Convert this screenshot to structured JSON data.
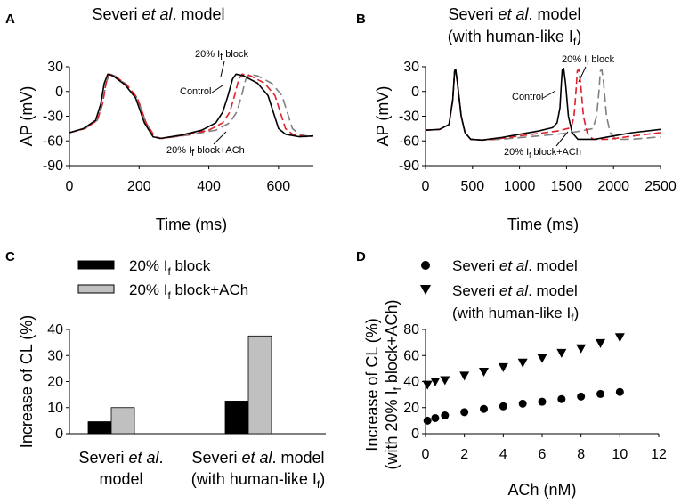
{
  "chart_data": [
    {
      "panel": "A",
      "type": "line",
      "title": "Severi et al. model",
      "title_parts": [
        "Severi ",
        "et al",
        ". model"
      ],
      "xlabel": "Time (ms)",
      "ylabel": "AP (mV)",
      "xlim": [
        0,
        700
      ],
      "ylim": [
        -90,
        30
      ],
      "xticks": [
        0,
        200,
        400,
        600
      ],
      "yticks": [
        30,
        0,
        -30,
        -60,
        -90
      ],
      "series": [
        {
          "name": "Control",
          "color": "#000000",
          "dash": "solid",
          "points": [
            [
              0,
              -50
            ],
            [
              40,
              -45
            ],
            [
              75,
              -35
            ],
            [
              90,
              -15
            ],
            [
              100,
              10
            ],
            [
              110,
              21
            ],
            [
              125,
              19
            ],
            [
              160,
              8
            ],
            [
              190,
              -8
            ],
            [
              215,
              -38
            ],
            [
              240,
              -55
            ],
            [
              260,
              -57
            ],
            [
              320,
              -53
            ],
            [
              380,
              -47
            ],
            [
              420,
              -38
            ],
            [
              440,
              -25
            ],
            [
              455,
              -5
            ],
            [
              468,
              15
            ],
            [
              478,
              21
            ],
            [
              500,
              19
            ],
            [
              540,
              10
            ],
            [
              570,
              -5
            ],
            [
              585,
              -25
            ],
            [
              600,
              -45
            ],
            [
              620,
              -52
            ],
            [
              660,
              -55
            ],
            [
              700,
              -54
            ]
          ]
        },
        {
          "name": "20% If block",
          "color": "#e0202a",
          "dash": "8,4",
          "points": [
            [
              0,
              -50
            ],
            [
              45,
              -45
            ],
            [
              80,
              -35
            ],
            [
              95,
              -15
            ],
            [
              105,
              10
            ],
            [
              115,
              21
            ],
            [
              130,
              19
            ],
            [
              165,
              8
            ],
            [
              195,
              -8
            ],
            [
              220,
              -38
            ],
            [
              245,
              -55
            ],
            [
              265,
              -57
            ],
            [
              330,
              -53
            ],
            [
              400,
              -47
            ],
            [
              440,
              -38
            ],
            [
              460,
              -25
            ],
            [
              474,
              -5
            ],
            [
              486,
              15
            ],
            [
              496,
              21
            ],
            [
              520,
              19
            ],
            [
              560,
              10
            ],
            [
              590,
              -5
            ],
            [
              605,
              -25
            ],
            [
              620,
              -45
            ],
            [
              640,
              -52
            ],
            [
              680,
              -55
            ],
            [
              700,
              -54
            ]
          ]
        },
        {
          "name": "20% If block+ACh",
          "color": "#808080",
          "dash": "10,5",
          "points": [
            [
              0,
              -50
            ],
            [
              45,
              -45
            ],
            [
              80,
              -35
            ],
            [
              95,
              -15
            ],
            [
              105,
              10
            ],
            [
              115,
              21
            ],
            [
              130,
              19
            ],
            [
              165,
              8
            ],
            [
              195,
              -8
            ],
            [
              220,
              -38
            ],
            [
              245,
              -55
            ],
            [
              265,
              -57
            ],
            [
              340,
              -53
            ],
            [
              420,
              -47
            ],
            [
              460,
              -38
            ],
            [
              480,
              -25
            ],
            [
              494,
              -5
            ],
            [
              506,
              15
            ],
            [
              516,
              21
            ],
            [
              540,
              19
            ],
            [
              580,
              10
            ],
            [
              610,
              -5
            ],
            [
              625,
              -25
            ],
            [
              640,
              -45
            ],
            [
              660,
              -52
            ],
            [
              690,
              -55
            ],
            [
              700,
              -54
            ]
          ]
        }
      ],
      "annotations": [
        {
          "text_parts": [
            "20% I",
            "f",
            " block"
          ]
        },
        {
          "text_parts": [
            "Control"
          ]
        },
        {
          "text_parts": [
            "20% I",
            "f",
            " block+ACh"
          ]
        }
      ]
    },
    {
      "panel": "B",
      "type": "line",
      "title": "Severi et al. model",
      "title_parts": [
        "Severi ",
        "et al",
        ". model"
      ],
      "title2_parts": [
        "(with human-like I",
        "f",
        ")"
      ],
      "xlabel": "Time (ms)",
      "ylabel": "AP (mV)",
      "xlim": [
        0,
        2500
      ],
      "ylim": [
        -90,
        30
      ],
      "xticks": [
        0,
        500,
        1000,
        1500,
        2000,
        2500
      ],
      "yticks": [
        30,
        0,
        -30,
        -60,
        -90
      ],
      "series": [
        {
          "name": "Control",
          "color": "#000000",
          "dash": "solid",
          "points": [
            [
              0,
              -47
            ],
            [
              150,
              -46
            ],
            [
              250,
              -40
            ],
            [
              290,
              -10
            ],
            [
              310,
              25
            ],
            [
              320,
              27
            ],
            [
              340,
              10
            ],
            [
              380,
              -30
            ],
            [
              420,
              -50
            ],
            [
              480,
              -58
            ],
            [
              600,
              -59
            ],
            [
              800,
              -56
            ],
            [
              1000,
              -52
            ],
            [
              1200,
              -48
            ],
            [
              1350,
              -44
            ],
            [
              1400,
              -38
            ],
            [
              1430,
              -20
            ],
            [
              1445,
              10
            ],
            [
              1455,
              26
            ],
            [
              1470,
              28
            ],
            [
              1490,
              10
            ],
            [
              1520,
              -30
            ],
            [
              1560,
              -50
            ],
            [
              1620,
              -58
            ],
            [
              1800,
              -58
            ],
            [
              2000,
              -54
            ],
            [
              2200,
              -50
            ],
            [
              2500,
              -46
            ]
          ]
        },
        {
          "name": "20% If block",
          "color": "#e0202a",
          "dash": "8,4",
          "points": [
            [
              0,
              -47
            ],
            [
              150,
              -46
            ],
            [
              250,
              -40
            ],
            [
              290,
              -10
            ],
            [
              310,
              25
            ],
            [
              320,
              27
            ],
            [
              340,
              10
            ],
            [
              380,
              -30
            ],
            [
              420,
              -50
            ],
            [
              480,
              -58
            ],
            [
              600,
              -59
            ],
            [
              800,
              -57
            ],
            [
              1000,
              -54
            ],
            [
              1200,
              -51
            ],
            [
              1400,
              -48
            ],
            [
              1550,
              -44
            ],
            [
              1580,
              -30
            ],
            [
              1600,
              0
            ],
            [
              1615,
              25
            ],
            [
              1630,
              27
            ],
            [
              1650,
              10
            ],
            [
              1680,
              -30
            ],
            [
              1720,
              -50
            ],
            [
              1780,
              -58
            ],
            [
              1950,
              -58
            ],
            [
              2150,
              -55
            ],
            [
              2350,
              -52
            ],
            [
              2500,
              -50
            ]
          ]
        },
        {
          "name": "20% If block+ACh",
          "color": "#808080",
          "dash": "10,5",
          "points": [
            [
              0,
              -47
            ],
            [
              150,
              -46
            ],
            [
              250,
              -40
            ],
            [
              290,
              -10
            ],
            [
              310,
              25
            ],
            [
              320,
              27
            ],
            [
              340,
              10
            ],
            [
              380,
              -30
            ],
            [
              420,
              -50
            ],
            [
              480,
              -58
            ],
            [
              600,
              -59
            ],
            [
              800,
              -58
            ],
            [
              1000,
              -56
            ],
            [
              1200,
              -54
            ],
            [
              1400,
              -52
            ],
            [
              1600,
              -49
            ],
            [
              1780,
              -45
            ],
            [
              1820,
              -30
            ],
            [
              1845,
              0
            ],
            [
              1860,
              25
            ],
            [
              1875,
              27
            ],
            [
              1895,
              10
            ],
            [
              1925,
              -30
            ],
            [
              1965,
              -50
            ],
            [
              2020,
              -58
            ],
            [
              2200,
              -58
            ],
            [
              2400,
              -56
            ],
            [
              2500,
              -55
            ]
          ]
        }
      ],
      "annotations": [
        {
          "text_parts": [
            "20% I",
            "f",
            " block"
          ]
        },
        {
          "text_parts": [
            "Control"
          ]
        },
        {
          "text_parts": [
            "20% I",
            "f",
            " block+ACh"
          ]
        }
      ]
    },
    {
      "panel": "C",
      "type": "bar",
      "ylabel": "Increase of CL (%)",
      "ylim": [
        0,
        40
      ],
      "yticks": [
        0,
        10,
        20,
        30,
        40
      ],
      "categories": [
        {
          "line1_parts": [
            "Severi ",
            "et al",
            "."
          ],
          "line2_parts": [
            "model"
          ]
        },
        {
          "line1_parts": [
            "Severi ",
            "et al",
            ". model"
          ],
          "line2_parts": [
            "(with human-like I",
            "f",
            ")"
          ]
        }
      ],
      "series": [
        {
          "name_parts": [
            "20% I",
            "f",
            " block"
          ],
          "color": "#000000",
          "values": [
            4.6,
            12.5
          ]
        },
        {
          "name_parts": [
            "20% I",
            "f",
            " block+ACh"
          ],
          "color": "#c0c0c0",
          "values": [
            10.0,
            37.5
          ]
        }
      ]
    },
    {
      "panel": "D",
      "type": "scatter",
      "ylabel_line1": "Increase of CL (%)",
      "ylabel_line2_parts": [
        "(with 20% I",
        "f",
        " block+ACh)"
      ],
      "xlabel": "ACh (nM)",
      "xlim": [
        0,
        12
      ],
      "ylim": [
        0,
        80
      ],
      "xticks": [
        0,
        2,
        4,
        6,
        8,
        10,
        12
      ],
      "yticks": [
        0,
        20,
        40,
        60,
        80
      ],
      "series": [
        {
          "name_parts": [
            "Severi ",
            "et al",
            ". model"
          ],
          "marker": "circle",
          "x": [
            0.1,
            0.5,
            1,
            2,
            3,
            4,
            5,
            6,
            7,
            8,
            9,
            10
          ],
          "y": [
            10,
            12,
            14,
            16.5,
            19,
            21,
            23,
            24.5,
            26.5,
            28.5,
            30.5,
            32
          ]
        },
        {
          "name_parts": [
            "Severi ",
            "et al",
            ". model"
          ],
          "name2_parts": [
            "(with human-like I",
            "f",
            ")"
          ],
          "marker": "triangle-down",
          "x": [
            0.1,
            0.5,
            1,
            2,
            3,
            4,
            5,
            6,
            7,
            8,
            9,
            10
          ],
          "y": [
            37.5,
            40,
            41,
            44.5,
            47.5,
            51,
            54.5,
            58,
            62,
            65.5,
            69.5,
            74
          ]
        }
      ]
    }
  ]
}
